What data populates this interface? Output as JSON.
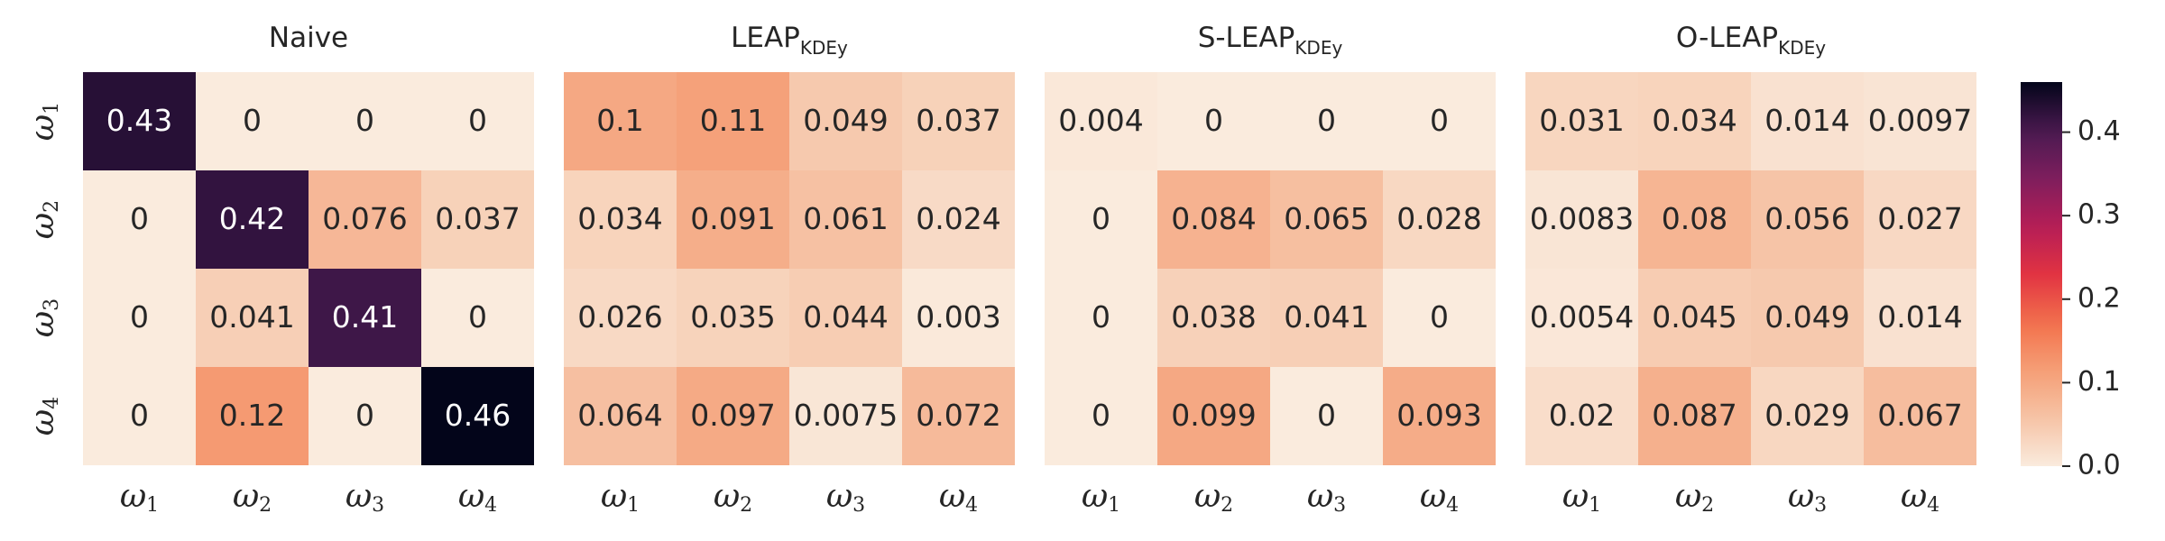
{
  "chart_data": {
    "type": "heatmap",
    "colorbar": {
      "min": 0.0,
      "max": 0.46,
      "ticks": [
        "0.0",
        "0.1",
        "0.2",
        "0.3",
        "0.4"
      ],
      "tick_values": [
        0.0,
        0.1,
        0.2,
        0.3,
        0.4
      ]
    },
    "row_labels": [
      {
        "sym": "ω",
        "sub": "1"
      },
      {
        "sym": "ω",
        "sub": "2"
      },
      {
        "sym": "ω",
        "sub": "3"
      },
      {
        "sym": "ω",
        "sub": "4"
      }
    ],
    "col_labels": [
      {
        "sym": "ω",
        "sub": "1"
      },
      {
        "sym": "ω",
        "sub": "2"
      },
      {
        "sym": "ω",
        "sub": "3"
      },
      {
        "sym": "ω",
        "sub": "4"
      }
    ],
    "panels": [
      {
        "title": "Naive",
        "title_sub": "",
        "values": [
          [
            0.43,
            0,
            0,
            0
          ],
          [
            0,
            0.42,
            0.076,
            0.037
          ],
          [
            0,
            0.041,
            0.41,
            0
          ],
          [
            0,
            0.12,
            0,
            0.46
          ]
        ],
        "labels": [
          [
            "0.43",
            "0",
            "0",
            "0"
          ],
          [
            "0",
            "0.42",
            "0.076",
            "0.037"
          ],
          [
            "0",
            "0.041",
            "0.41",
            "0"
          ],
          [
            "0",
            "0.12",
            "0",
            "0.46"
          ]
        ]
      },
      {
        "title": "LEAP",
        "title_sub": "KDEy",
        "values": [
          [
            0.1,
            0.11,
            0.049,
            0.037
          ],
          [
            0.034,
            0.091,
            0.061,
            0.024
          ],
          [
            0.026,
            0.035,
            0.044,
            0.003
          ],
          [
            0.064,
            0.097,
            0.0075,
            0.072
          ]
        ],
        "labels": [
          [
            "0.1",
            "0.11",
            "0.049",
            "0.037"
          ],
          [
            "0.034",
            "0.091",
            "0.061",
            "0.024"
          ],
          [
            "0.026",
            "0.035",
            "0.044",
            "0.003"
          ],
          [
            "0.064",
            "0.097",
            "0.0075",
            "0.072"
          ]
        ]
      },
      {
        "title": "S-LEAP",
        "title_sub": "KDEy",
        "values": [
          [
            0.004,
            0,
            0,
            0
          ],
          [
            0,
            0.084,
            0.065,
            0.028
          ],
          [
            0,
            0.038,
            0.041,
            0
          ],
          [
            0,
            0.099,
            0,
            0.093
          ]
        ],
        "labels": [
          [
            "0.004",
            "0",
            "0",
            "0"
          ],
          [
            "0",
            "0.084",
            "0.065",
            "0.028"
          ],
          [
            "0",
            "0.038",
            "0.041",
            "0"
          ],
          [
            "0",
            "0.099",
            "0",
            "0.093"
          ]
        ]
      },
      {
        "title": "O-LEAP",
        "title_sub": "KDEy",
        "values": [
          [
            0.031,
            0.034,
            0.014,
            0.0097
          ],
          [
            0.0083,
            0.08,
            0.056,
            0.027
          ],
          [
            0.0054,
            0.045,
            0.049,
            0.014
          ],
          [
            0.02,
            0.087,
            0.029,
            0.067
          ]
        ],
        "labels": [
          [
            "0.031",
            "0.034",
            "0.014",
            "0.0097"
          ],
          [
            "0.0083",
            "0.08",
            "0.056",
            "0.027"
          ],
          [
            "0.0054",
            "0.045",
            "0.049",
            "0.014"
          ],
          [
            "0.02",
            "0.087",
            "0.029",
            "0.067"
          ]
        ]
      }
    ]
  }
}
